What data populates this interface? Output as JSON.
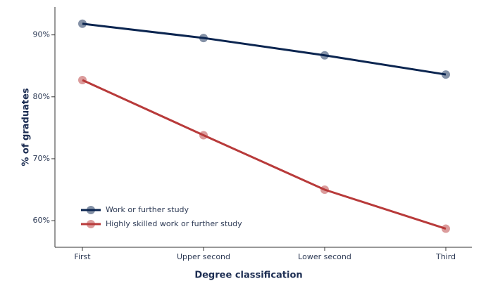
{
  "chart_data": {
    "type": "line",
    "x_label": "Degree classification",
    "y_label": "% of graduates",
    "categories": [
      "First",
      "Upper second",
      "Lower second",
      "Third"
    ],
    "series": [
      {
        "name": "Work or further study",
        "color": "#0b2550",
        "values": [
          91.8,
          89.5,
          86.7,
          83.6
        ]
      },
      {
        "name": "Highly skilled work or further study",
        "color": "#b83a3a",
        "values": [
          82.7,
          73.8,
          65.0,
          58.7
        ]
      }
    ],
    "ylim": [
      55.7,
      94.5
    ],
    "yticks": [
      {
        "value": 60,
        "label": "60%"
      },
      {
        "value": 70,
        "label": "70%"
      },
      {
        "value": 80,
        "label": "80%"
      },
      {
        "value": 90,
        "label": "90%"
      }
    ],
    "legend": "lower left"
  }
}
